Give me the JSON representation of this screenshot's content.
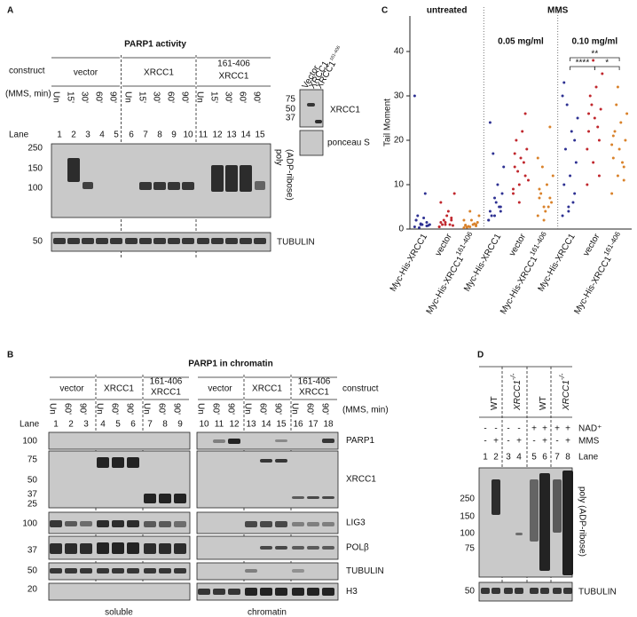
{
  "panel_a": {
    "label": "A",
    "title": "PARP1 activity",
    "row_labels": {
      "construct": "construct",
      "treatment": "(MMS, min)",
      "lane": "Lane"
    },
    "groups": [
      {
        "name": "vector"
      },
      {
        "name": "XRCC1"
      },
      {
        "name": "XRCC1",
        "superscript": "161-406"
      }
    ],
    "times": [
      "Un",
      "15'",
      "30'",
      "60'",
      "90'"
    ],
    "lanes": [
      1,
      2,
      3,
      4,
      5,
      6,
      7,
      8,
      9,
      10,
      11,
      12,
      13,
      14,
      15
    ],
    "blots": [
      {
        "label_lines": [
          "poly",
          "(ADP-ribose)"
        ],
        "markers": [
          "250",
          "150",
          "100"
        ]
      },
      {
        "label_lines": [
          "TUBULIN"
        ],
        "markers": [
          "50"
        ]
      }
    ],
    "inset": {
      "lanes": [
        {
          "name": "Vector"
        },
        {
          "name": "XRCC1"
        },
        {
          "name": "XRCC1",
          "superscript": "161-406"
        }
      ],
      "markers": [
        "75",
        "50",
        "37"
      ],
      "labels": [
        "XRCC1",
        "ponceau S"
      ]
    }
  },
  "chart_data": {
    "type": "strip",
    "label": "C",
    "ylabel": "Tail Moment",
    "ylim": [
      0,
      48
    ],
    "yticks": [
      0,
      10,
      20,
      30,
      40
    ],
    "treatment": "MMS",
    "groups": [
      {
        "name": "untreated"
      },
      {
        "name": "0.05 mg/ml"
      },
      {
        "name": "0.10 mg/ml"
      }
    ],
    "significance": [
      "****",
      "**",
      "*"
    ],
    "categories": [
      "Myc-His-XRCC1",
      "vector",
      "Myc-His-XRCC1",
      "Myc-His-XRCC1",
      "vector",
      "Myc-His-XRCC1",
      "Myc-His-XRCC1",
      "vector",
      "Myc-His-XRCC1"
    ],
    "category_superscripts": [
      null,
      null,
      "161-406",
      null,
      null,
      "161-406",
      null,
      null,
      "161-406"
    ],
    "colors": [
      "#2e3192",
      "#c0272d",
      "#d9822b",
      "#2e3192",
      "#c0272d",
      "#d9822b",
      "#2e3192",
      "#c0272d",
      "#d9822b"
    ],
    "label_colors": [
      "#111111",
      "#c0272d",
      "#d9822b",
      "#111111",
      "#c0272d",
      "#d9822b",
      "#111111",
      "#c0272d",
      "#d9822b"
    ],
    "values": [
      [
        0.5,
        1,
        1.5,
        2,
        1,
        0.8,
        3,
        2.5,
        1,
        0.3,
        8,
        30,
        1.2,
        0.7,
        2
      ],
      [
        0.5,
        1,
        2,
        1.5,
        3,
        0.8,
        1,
        4,
        8,
        2,
        1,
        0.5,
        1.5,
        2.5,
        6
      ],
      [
        0.3,
        0.5,
        1,
        0.8,
        2,
        1.5,
        0.4,
        1,
        3,
        0.6,
        1.2,
        2,
        4,
        0.7,
        0.9
      ],
      [
        2,
        3,
        5,
        4,
        6,
        8,
        3,
        10,
        14,
        17,
        5,
        2,
        7,
        4,
        24
      ],
      [
        8,
        10,
        12,
        14,
        16,
        18,
        20,
        22,
        11,
        13,
        15,
        9,
        6,
        26,
        17
      ],
      [
        3,
        5,
        7,
        9,
        4,
        6,
        8,
        10,
        12,
        14,
        5,
        16,
        2,
        23,
        7
      ],
      [
        3,
        5,
        8,
        10,
        12,
        15,
        18,
        22,
        25,
        28,
        6,
        30,
        4,
        20,
        33
      ],
      [
        10,
        15,
        20,
        22,
        25,
        27,
        30,
        32,
        35,
        28,
        23,
        18,
        38,
        12,
        26
      ],
      [
        8,
        12,
        14,
        16,
        18,
        20,
        22,
        24,
        26,
        28,
        15,
        19,
        32,
        11,
        21
      ]
    ]
  },
  "panel_b": {
    "label": "B",
    "title": "PARP1 in chromatin",
    "row_labels": {
      "construct": "construct",
      "treatment": "(MMS, min)",
      "lane": "Lane"
    },
    "groups": [
      {
        "name": "vector"
      },
      {
        "name": "XRCC1"
      },
      {
        "name": "XRCC1",
        "superscript": "161-406"
      }
    ],
    "times": [
      "Un",
      "60'",
      "90'"
    ],
    "lanes": [
      1,
      2,
      3,
      4,
      5,
      6,
      7,
      8,
      9,
      10,
      11,
      12,
      13,
      14,
      15,
      16,
      17,
      18
    ],
    "blots": [
      {
        "label": "PARP1",
        "markers": [
          "100"
        ]
      },
      {
        "label": "XRCC1",
        "markers": [
          "75",
          "50",
          "37",
          "25"
        ]
      },
      {
        "label": "LIG3",
        "markers": [
          "100"
        ]
      },
      {
        "label": "POLβ",
        "markers": [
          "37"
        ]
      },
      {
        "label": "TUBULIN",
        "markers": [
          "50"
        ]
      },
      {
        "label": "H3",
        "markers": [
          "20"
        ]
      }
    ],
    "fractions": [
      "soluble",
      "chromatin"
    ]
  },
  "panel_d": {
    "label": "D",
    "genotypes": [
      {
        "name": "WT"
      },
      {
        "name": "XRCC1",
        "superscript": "-/-"
      },
      {
        "name": "WT"
      },
      {
        "name": "XRCC1",
        "superscript": "-/-"
      }
    ],
    "rows": [
      {
        "label": "NAD⁺",
        "signs": [
          "-",
          "-",
          "-",
          "-",
          "+",
          "+",
          "+",
          "+"
        ]
      },
      {
        "label": "MMS",
        "signs": [
          "-",
          "+",
          "-",
          "+",
          "-",
          "+",
          "-",
          "+"
        ]
      }
    ],
    "lane_label": "Lane",
    "lanes": [
      1,
      2,
      3,
      4,
      5,
      6,
      7,
      8
    ],
    "blots": [
      {
        "label": "poly (ADP-ribose)",
        "markers": [
          "250",
          "150",
          "100",
          "75"
        ]
      },
      {
        "label": "TUBULIN",
        "markers": [
          "50"
        ]
      }
    ]
  }
}
